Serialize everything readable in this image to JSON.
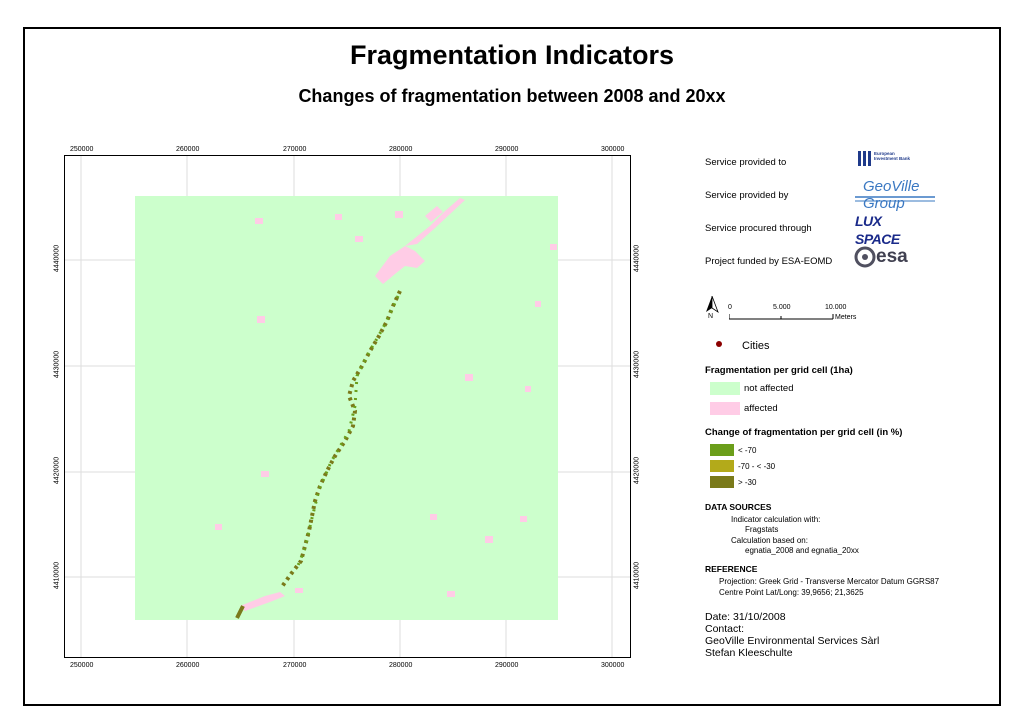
{
  "title": "Fragmentation Indicators",
  "subtitle": "Changes of fragmentation between 2008 and 20xx",
  "colors": {
    "not_affected": "#ccffcc",
    "affected": "#ffcce6",
    "lt_minus70": "#6b9e1a",
    "minus70_to_minus30": "#b3aa1a",
    "gt_minus30": "#7a7a1a",
    "city": "#8b0000"
  },
  "axes": {
    "x_ticks": [
      "250000",
      "260000",
      "270000",
      "280000",
      "290000",
      "300000"
    ],
    "y_ticks": [
      "4440000",
      "4430000",
      "4420000",
      "4410000"
    ]
  },
  "services": [
    {
      "label": "Service provided to",
      "logo_text": "European Investment Bank"
    },
    {
      "label": "Service provided by",
      "logo_text": "GeoVille Group"
    },
    {
      "label": "Service procured through",
      "logo_text": "LUX SPACE"
    },
    {
      "label": "Project funded by ESA-EOMD",
      "logo_text": "esa"
    }
  ],
  "scale": {
    "north": "N",
    "labels": [
      "0",
      "5.000",
      "10.000"
    ],
    "unit": "Meters"
  },
  "legend": {
    "cities": "Cities",
    "frag_title": "Fragmentation per grid cell (1ha)",
    "not_affected": "not affected",
    "affected": "affected",
    "change_title": "Change of fragmentation per grid cell (in %)",
    "c1": "< -70",
    "c2": "-70 - < -30",
    "c3": "> -30"
  },
  "data_sources": {
    "heading": "DATA SOURCES",
    "l1": "Indicator calculation with:",
    "l2": "Fragstats",
    "l3": "Calculation based on:",
    "l4": "egnatia_2008 and egnatia_20xx"
  },
  "reference": {
    "heading": "REFERENCE",
    "l1": "Projection: Greek Grid - Transverse Mercator Datum GGRS87",
    "l2": "Centre Point Lat/Long: 39,9656; 21,3625"
  },
  "footer": {
    "date": "Date: 31/10/2008",
    "contact": "Contact:",
    "org": "GeoVille Environmental Services Sàrl",
    "person": "Stefan Kleeschulte"
  }
}
